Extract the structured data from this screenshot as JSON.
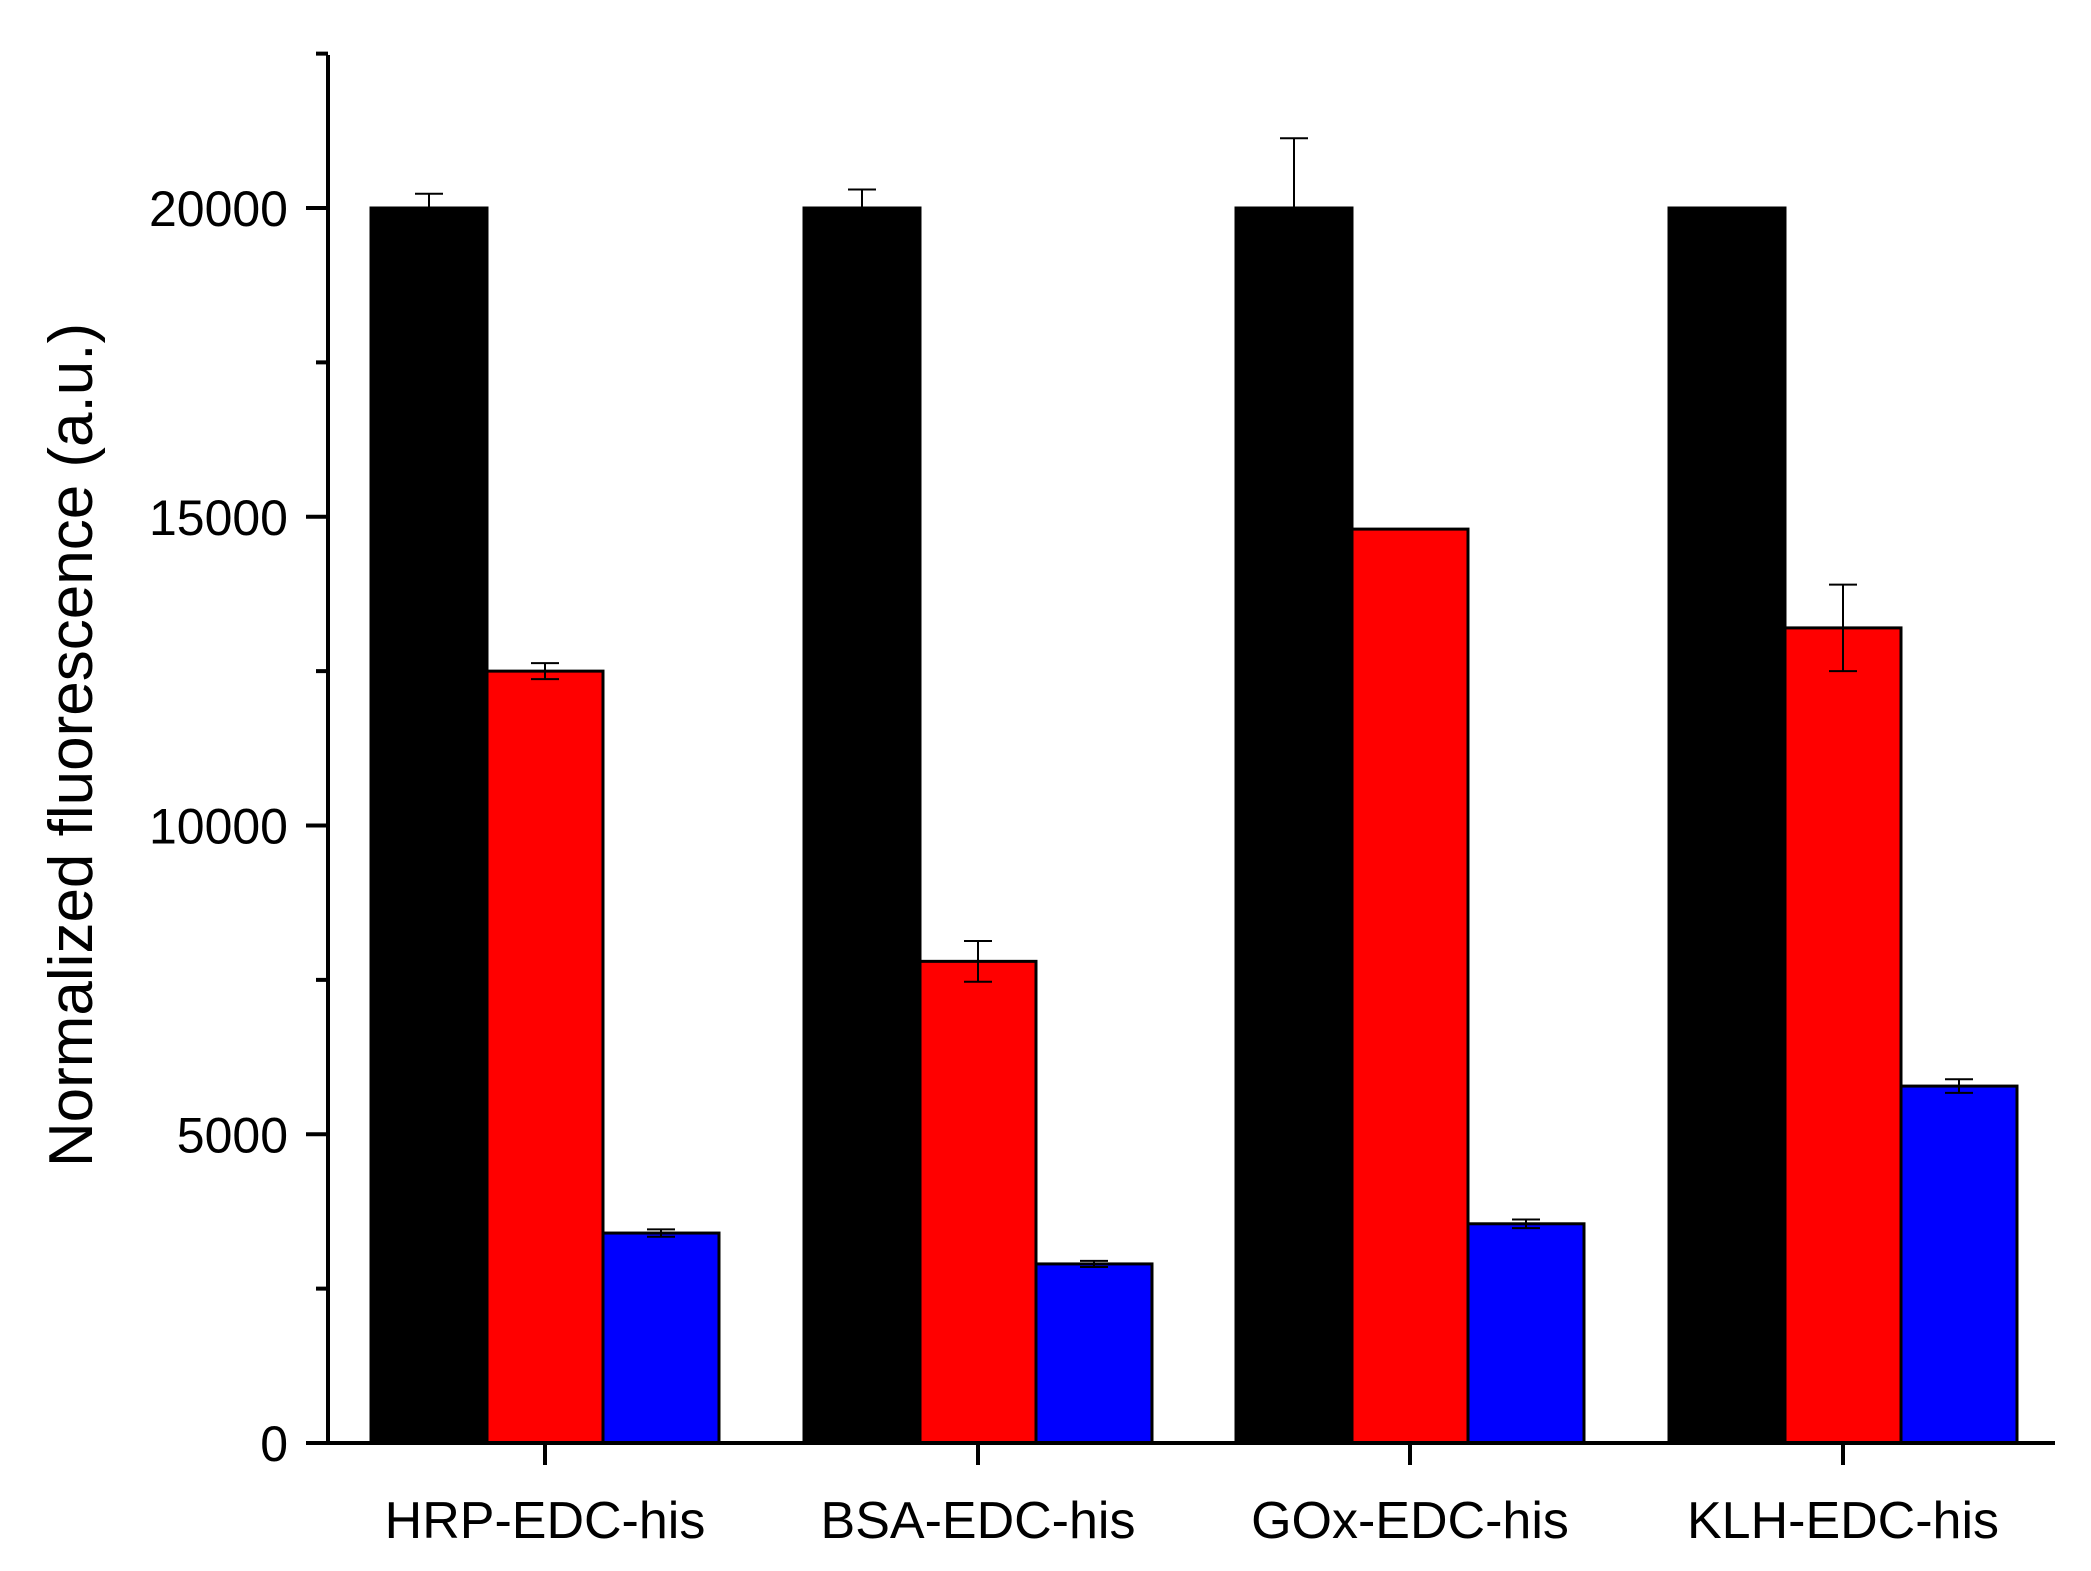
{
  "chart_data": {
    "type": "bar",
    "title": "",
    "xlabel": "",
    "ylabel": "Normalized fluorescence (a.u.)",
    "ylim": [
      0,
      22500
    ],
    "yticks": [
      0,
      5000,
      10000,
      15000,
      20000
    ],
    "ytick_labels": [
      "0",
      "5000",
      "10000",
      "15000",
      "20000"
    ],
    "categories": [
      "HRP-EDC-his",
      "BSA-EDC-his",
      "GOx-EDC-his",
      "KLH-EDC-his"
    ],
    "grid": false,
    "legend": "none",
    "series": [
      {
        "name": "series-1",
        "color": "#000000",
        "values": [
          20000,
          20000,
          20000,
          20000
        ],
        "errors": [
          230,
          300,
          1130,
          0
        ]
      },
      {
        "name": "series-2",
        "color": "#ff0000",
        "values": [
          12500,
          7800,
          14800,
          13200
        ],
        "errors": [
          130,
          330,
          0,
          700
        ]
      },
      {
        "name": "series-3",
        "color": "#0000ff",
        "values": [
          3400,
          2900,
          3550,
          5780
        ],
        "errors": [
          60,
          50,
          70,
          110
        ]
      }
    ]
  }
}
